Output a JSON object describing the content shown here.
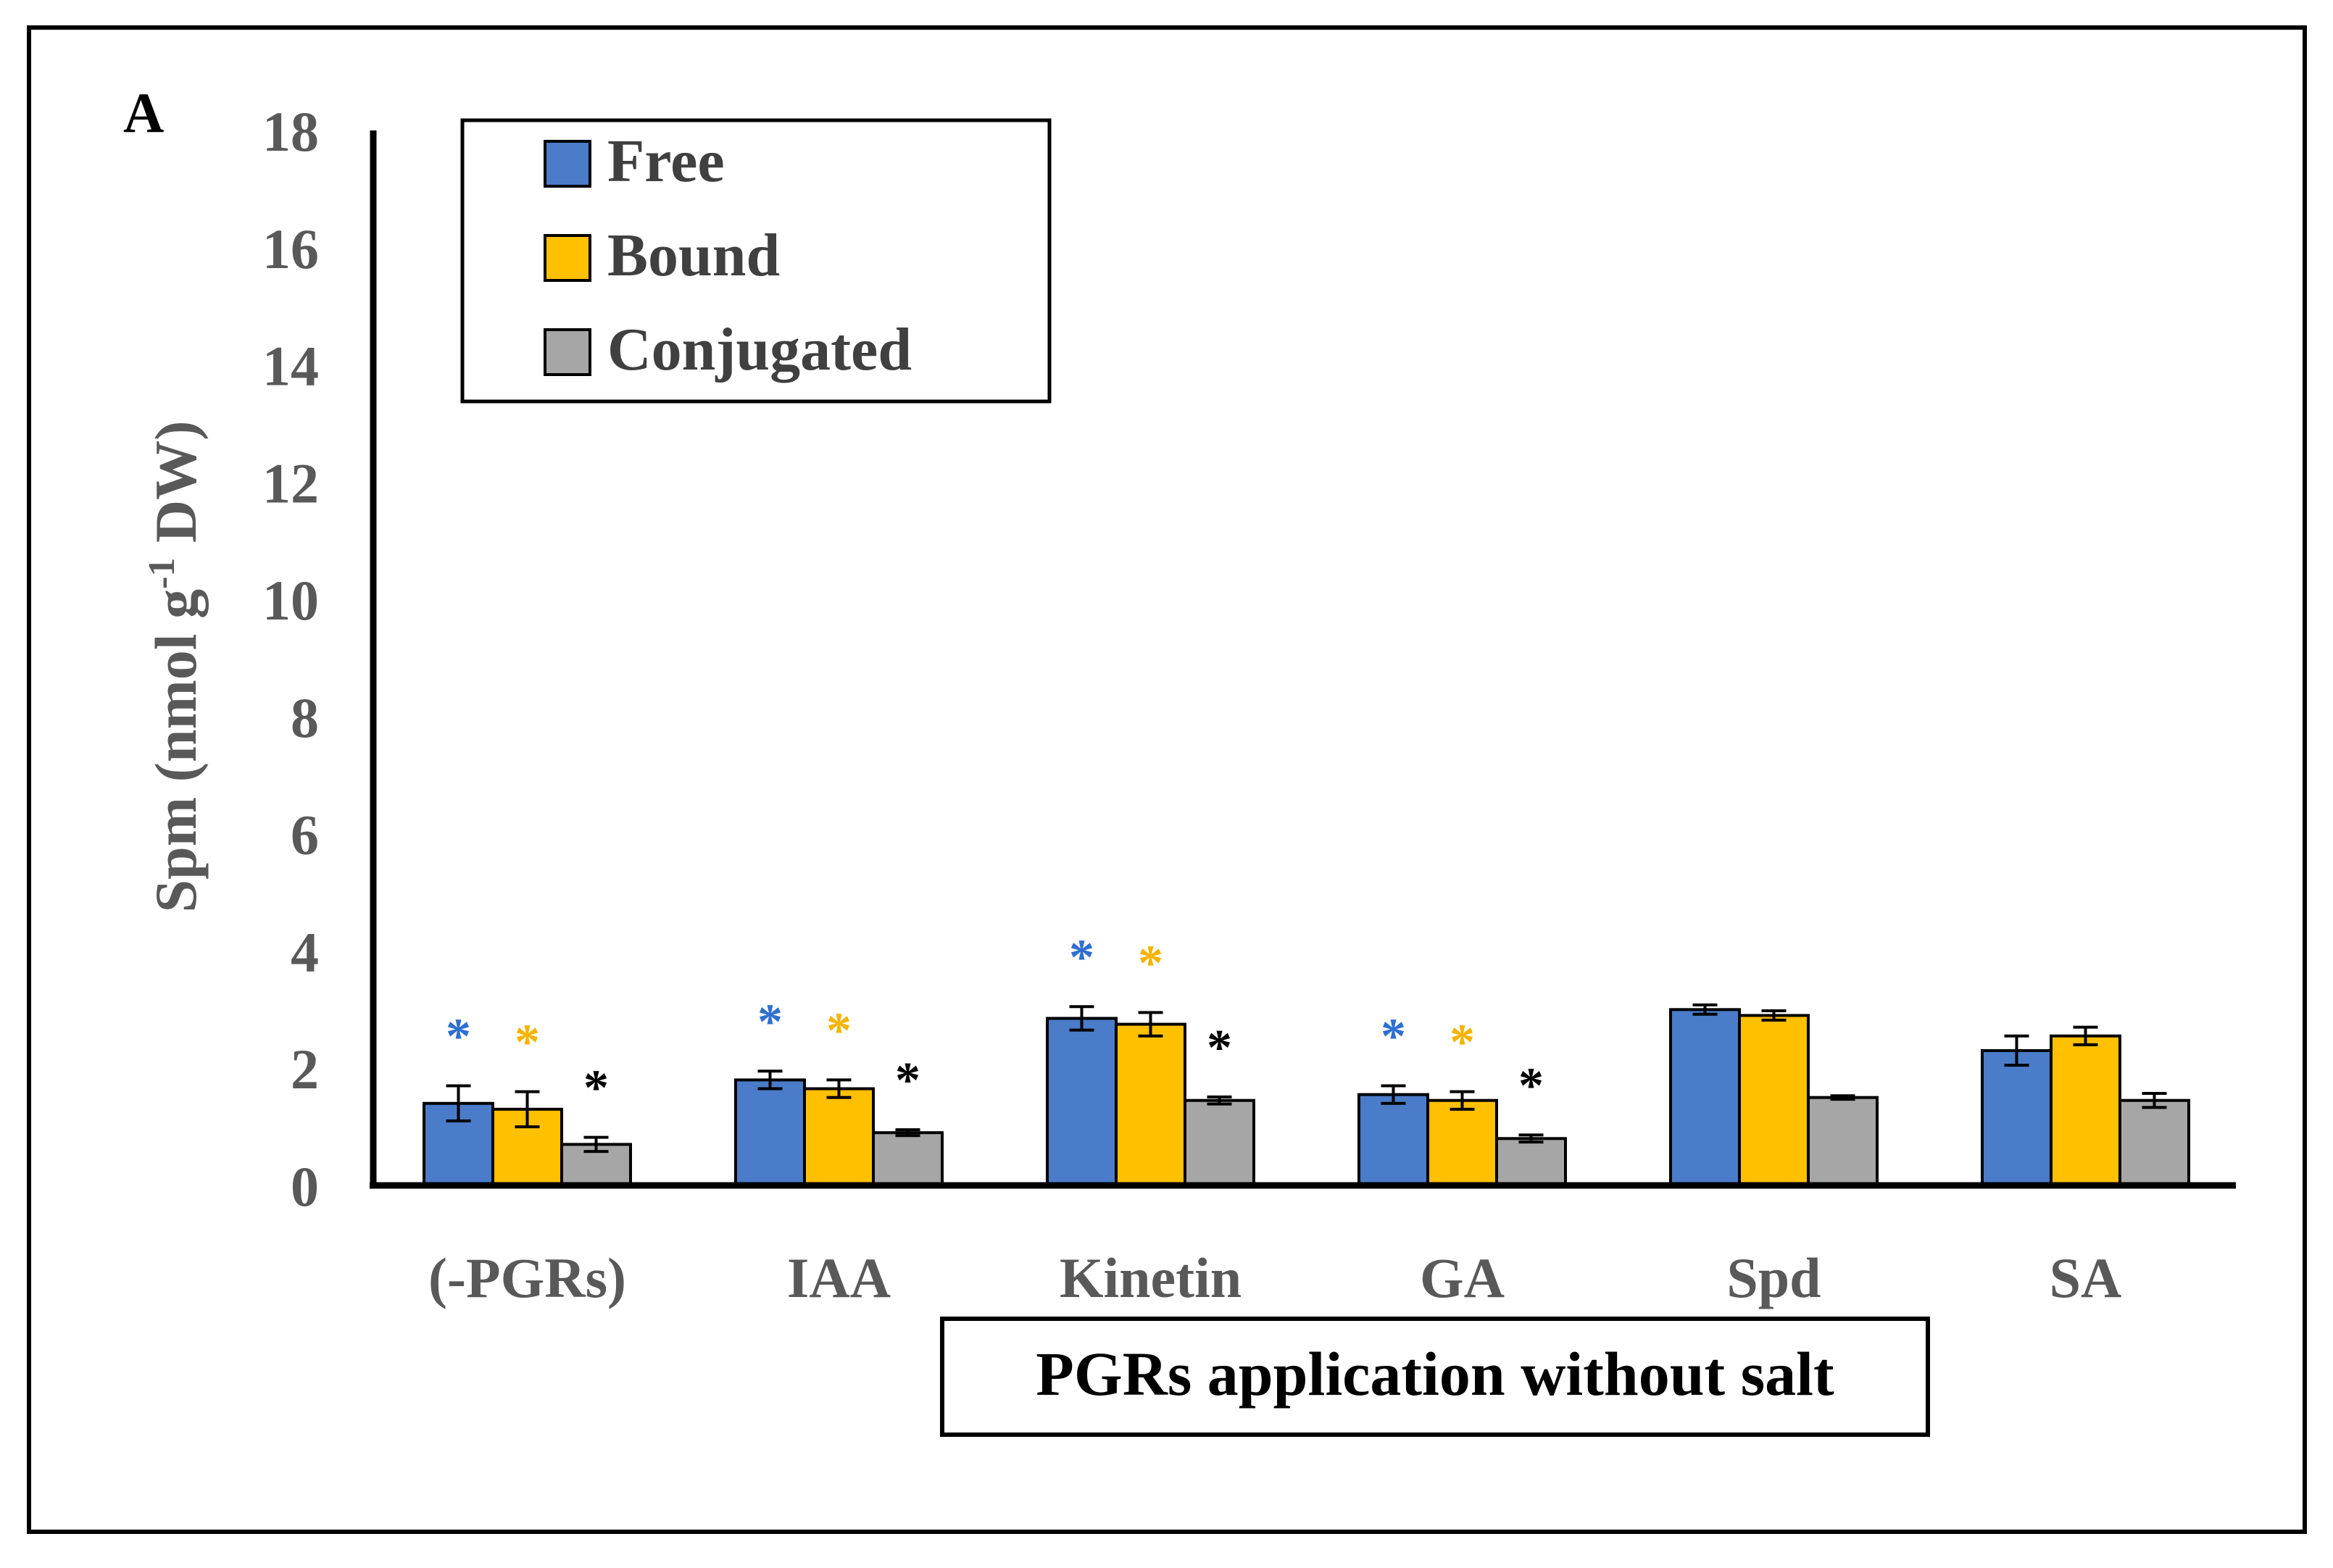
{
  "panel_label": "A",
  "chart_data": {
    "type": "bar",
    "title": "",
    "xlabel": "PGRs application without salt",
    "ylabel_main": "Spm (nmol g",
    "ylabel_sup": "-1",
    "ylabel_tail": " DW)",
    "ylim": [
      0,
      18
    ],
    "yticks": [
      "0",
      "2",
      "4",
      "6",
      "8",
      "10",
      "12",
      "14",
      "16",
      "18"
    ],
    "categories": [
      "(-PGRs)",
      "IAA",
      "Kinetin",
      "GA",
      "Spd",
      "SA"
    ],
    "series": [
      {
        "name": "Free",
        "color": "#4a7cc9",
        "star_color": "#2e6fd0",
        "values": [
          1.4,
          1.8,
          2.85,
          1.55,
          3.0,
          2.3
        ],
        "errors": [
          0.3,
          0.15,
          0.2,
          0.15,
          0.08,
          0.25
        ],
        "stars": [
          true,
          true,
          true,
          true,
          false,
          false
        ]
      },
      {
        "name": "Bound",
        "color": "#ffc000",
        "star_color": "#f5b400",
        "values": [
          1.3,
          1.65,
          2.75,
          1.45,
          2.9,
          2.55
        ],
        "errors": [
          0.3,
          0.15,
          0.2,
          0.15,
          0.08,
          0.15
        ],
        "stars": [
          true,
          true,
          true,
          true,
          false,
          false
        ]
      },
      {
        "name": "Conjugated",
        "color": "#a6a6a6",
        "star_color": "#000000",
        "values": [
          0.7,
          0.9,
          1.45,
          0.8,
          1.5,
          1.45
        ],
        "errors": [
          0.12,
          0.05,
          0.06,
          0.06,
          0.03,
          0.12
        ],
        "stars": [
          true,
          true,
          true,
          true,
          false,
          false
        ]
      }
    ],
    "star_symbol": "*",
    "legend_position": "top-left"
  }
}
